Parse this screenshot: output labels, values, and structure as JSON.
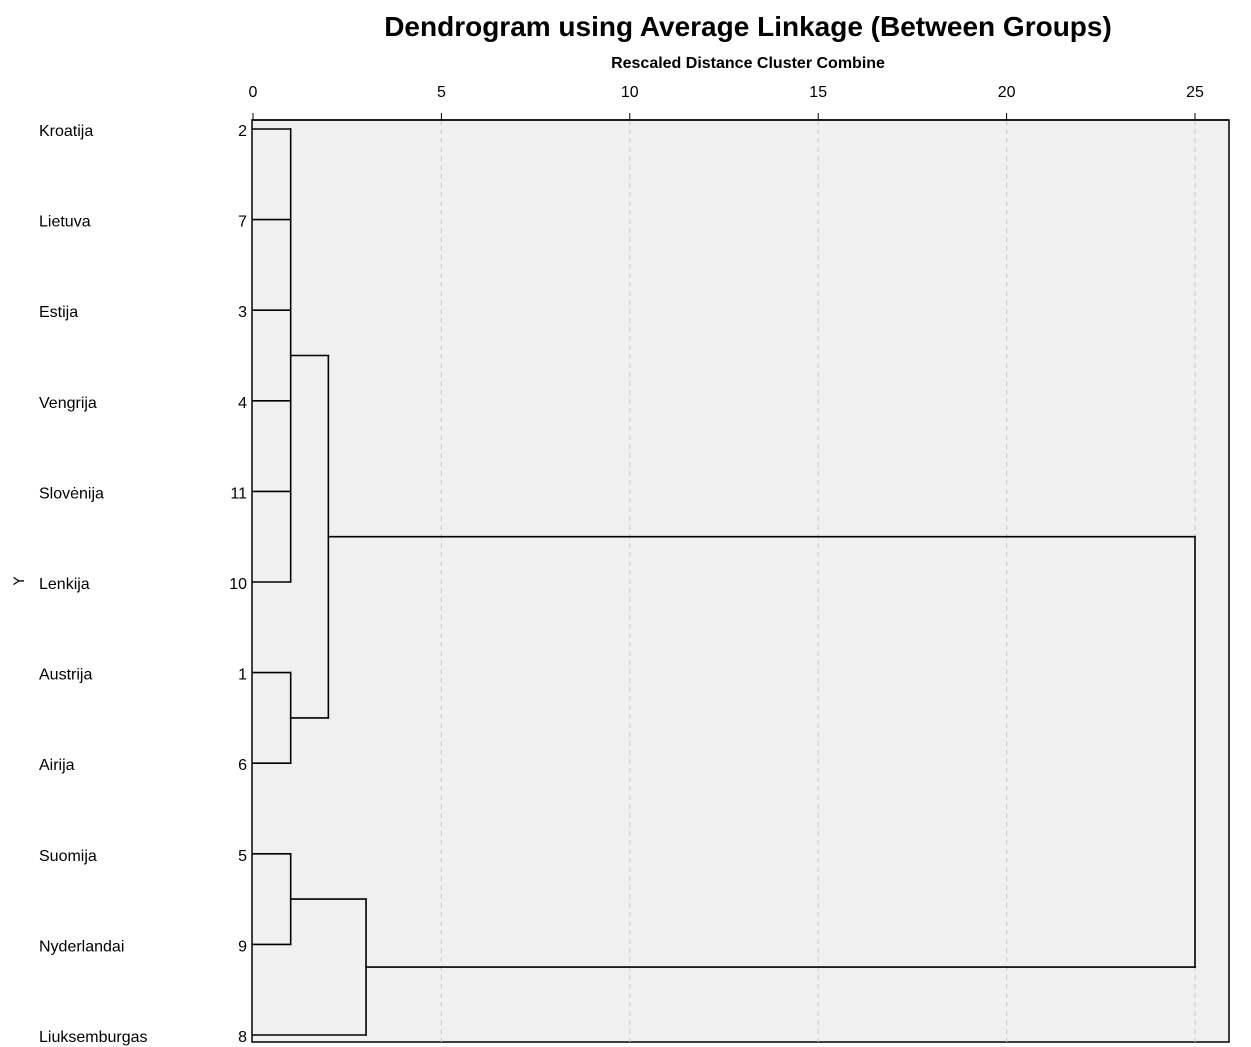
{
  "chart_data": {
    "type": "dendrogram",
    "title": "Dendrogram using Average Linkage (Between Groups)",
    "subtitle": "Rescaled Distance Cluster Combine",
    "x_ticks": [
      0,
      5,
      10,
      15,
      20,
      25
    ],
    "xlim": [
      0,
      25
    ],
    "grid": true,
    "y_marker": "Y",
    "leaves": [
      {
        "label": "Kroatija",
        "case": "2"
      },
      {
        "label": "Lietuva",
        "case": "7"
      },
      {
        "label": "Estija",
        "case": "3"
      },
      {
        "label": "Vengrija",
        "case": "4"
      },
      {
        "label": "Slovėnija",
        "case": "11"
      },
      {
        "label": "Lenkija",
        "case": "10"
      },
      {
        "label": "Austrija",
        "case": "1"
      },
      {
        "label": "Airija",
        "case": "6"
      },
      {
        "label": "Suomija",
        "case": "5"
      },
      {
        "label": "Nyderlandai",
        "case": "9"
      },
      {
        "label": "Liuksemburgas",
        "case": "8"
      }
    ],
    "merges": [
      {
        "leaves": [
          0,
          1,
          2,
          3,
          4,
          5
        ],
        "distance": 1
      },
      {
        "leaves": [
          6,
          7
        ],
        "distance": 1
      },
      {
        "leaves": [
          8,
          9
        ],
        "distance": 1
      },
      {
        "leaves": [
          0,
          1,
          2,
          3,
          4,
          5,
          6,
          7
        ],
        "distance": 2
      },
      {
        "leaves": [
          8,
          9,
          10
        ],
        "distance": 3
      },
      {
        "leaves": [
          0,
          1,
          2,
          3,
          4,
          5,
          6,
          7,
          8,
          9,
          10
        ],
        "distance": 25
      }
    ],
    "colors": {
      "plot_bg": "#f0f0f0",
      "line": "#000000",
      "grid": "#c8c8c8"
    }
  }
}
